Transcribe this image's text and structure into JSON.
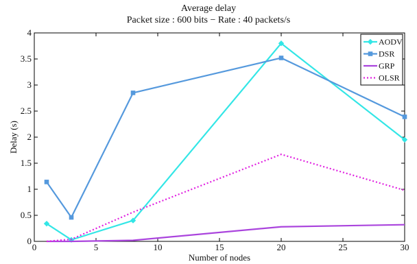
{
  "chart_data": {
    "type": "line",
    "title": "Average delay",
    "subtitle": "Packet size : 600 bits − Rate : 40 packets/s",
    "xlabel": "Number of nodes",
    "ylabel": "Delay (s)",
    "xlim": [
      0,
      30
    ],
    "ylim": [
      0,
      4
    ],
    "xticks": [
      "0",
      "5",
      "10",
      "15",
      "20",
      "25",
      "30"
    ],
    "yticks": [
      "0",
      "0.5",
      "1",
      "1.5",
      "2",
      "2.5",
      "3",
      "3.5",
      "4"
    ],
    "grid": false,
    "legend_position": "top-right",
    "series": [
      {
        "name": "AODV",
        "color": "#33e6e6",
        "style": "solid",
        "marker": "diamond",
        "x": [
          1,
          3,
          8,
          20,
          30
        ],
        "y": [
          0.34,
          0.03,
          0.4,
          3.8,
          1.95
        ]
      },
      {
        "name": "DSR",
        "color": "#5599dd",
        "style": "solid",
        "marker": "square",
        "x": [
          1,
          3,
          8,
          20,
          30
        ],
        "y": [
          1.14,
          0.46,
          2.85,
          3.52,
          2.39
        ]
      },
      {
        "name": "GRP",
        "color": "#aa44dd",
        "style": "solid",
        "marker": "none",
        "x": [
          1,
          3,
          8,
          20,
          30
        ],
        "y": [
          0.0,
          0.0,
          0.02,
          0.28,
          0.32
        ]
      },
      {
        "name": "OLSR",
        "color": "#e020e0",
        "style": "dotted",
        "marker": "none",
        "x": [
          1,
          3,
          8,
          20,
          30
        ],
        "y": [
          0.0,
          0.04,
          0.56,
          1.67,
          0.98
        ]
      }
    ]
  }
}
